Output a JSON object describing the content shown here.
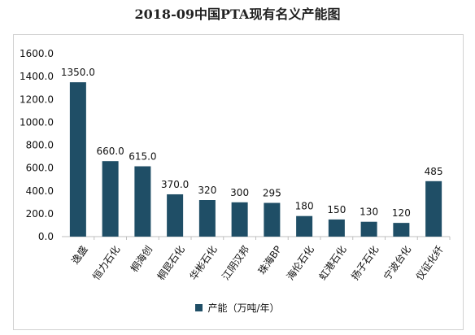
{
  "chart_data": {
    "type": "bar",
    "title": "2018-09中国PTA现有名义产能图",
    "categories": [
      "逸盛",
      "恒力石化",
      "桐海创",
      "桐昆石化",
      "华彬石化",
      "江阴汉邦",
      "珠海BP",
      "海伦石化",
      "虹港石化",
      "扬子石化",
      "宁波台化",
      "仪征化纤"
    ],
    "series": [
      {
        "name": "产能（万吨/年）",
        "values": [
          1350,
          660,
          615,
          370,
          320,
          300,
          295,
          180,
          150,
          130,
          120,
          485
        ],
        "labels": [
          "1350.0",
          "660.0",
          "615.0",
          "370.0",
          "320",
          "300",
          "295",
          "180",
          "150",
          "130",
          "120",
          "485"
        ]
      }
    ],
    "ylim": [
      0,
      1600
    ],
    "yticks": [
      "0.0",
      "200.0",
      "400.0",
      "600.0",
      "800.0",
      "1000.0",
      "1200.0",
      "1400.0",
      "1600.0"
    ],
    "grid": false,
    "legend_position": "bottom",
    "bar_color": "#1f4e66"
  }
}
